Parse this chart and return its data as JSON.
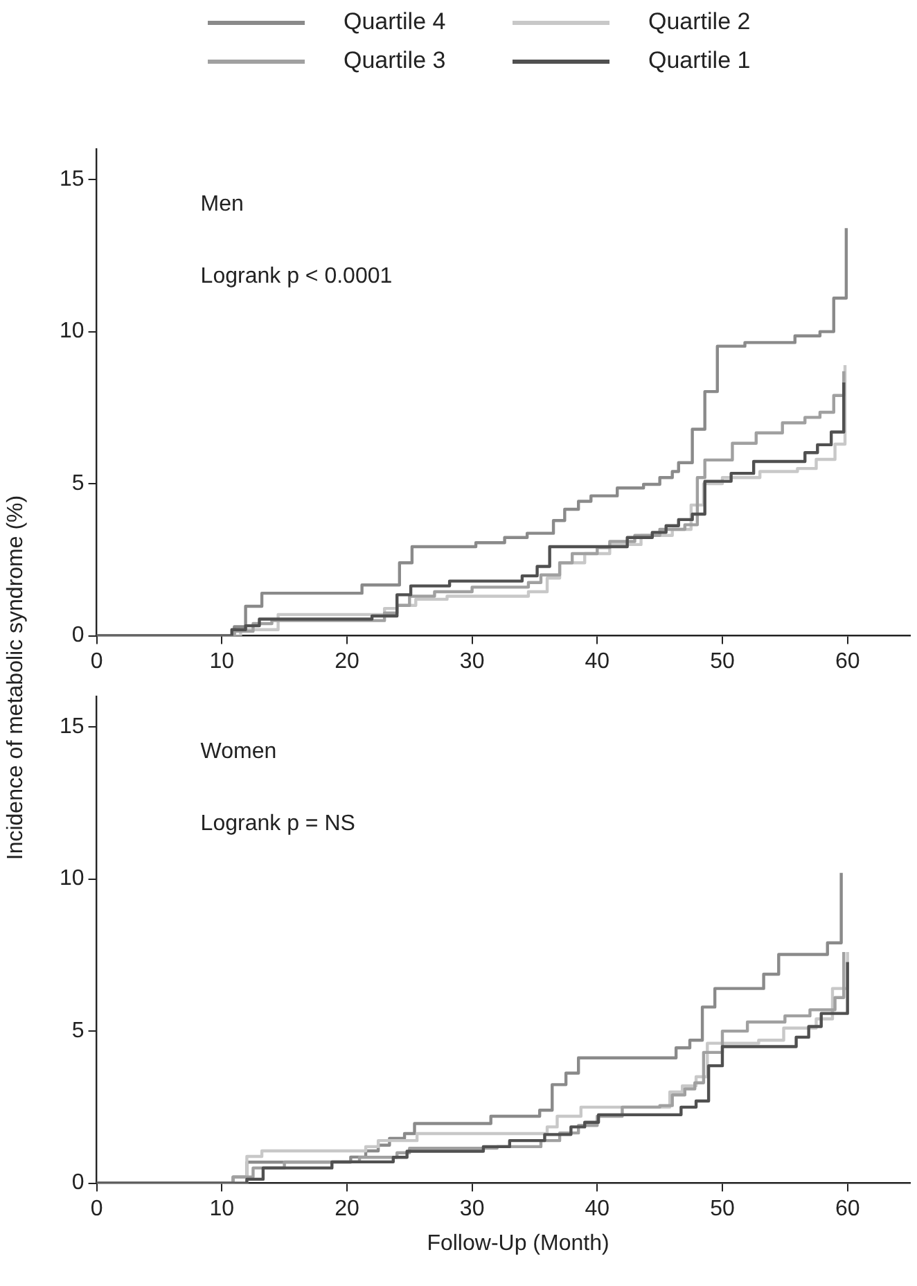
{
  "chart_data": [
    {
      "type": "step",
      "ylabel": "Incidence of metabolic syndrome (%)",
      "annotations": [
        "Men",
        "Logrank p < 0.0001"
      ],
      "legend": "top",
      "marker": "none",
      "grid": false,
      "xlim": [
        0,
        65
      ],
      "xticks": [
        0,
        10,
        20,
        30,
        40,
        50,
        60
      ],
      "ylim": [
        0,
        16
      ],
      "yticks": [
        0,
        5,
        10,
        15
      ],
      "series": [
        {
          "name": "Quartile 4",
          "color": "#8a8a8a",
          "x": [
            0,
            11,
            11.9,
            13.2,
            21.2,
            24.2,
            25.2,
            30.3,
            32.6,
            34.4,
            36.5,
            37.4,
            38.5,
            39.5,
            41.6,
            43.7,
            45,
            46,
            46.5,
            47.6,
            48.6,
            49.6,
            51.8,
            55.8,
            57.8,
            58.9,
            59.9
          ],
          "values": [
            0,
            0.3,
            0.97,
            1.4,
            1.67,
            2.4,
            2.93,
            3.06,
            3.23,
            3.37,
            3.79,
            4.16,
            4.42,
            4.6,
            4.86,
            4.98,
            5.2,
            5.4,
            5.69,
            6.79,
            8.03,
            9.52,
            9.64,
            9.86,
            10.0,
            11.1,
            13.4
          ]
        },
        {
          "name": "Quartile 2",
          "color": "#c8c8c8",
          "x": [
            0,
            11.5,
            14.5,
            23,
            24,
            25.5,
            28,
            34.5,
            36,
            37,
            39,
            41,
            43.5,
            46,
            47.5,
            48.5,
            50,
            53,
            56,
            57.5,
            59,
            59.8
          ],
          "values": [
            0,
            0.2,
            0.7,
            0.9,
            1.0,
            1.2,
            1.3,
            1.45,
            1.9,
            2.4,
            2.7,
            3.0,
            3.3,
            3.5,
            4.3,
            5.0,
            5.2,
            5.4,
            5.5,
            5.8,
            6.3,
            8.9
          ]
        },
        {
          "name": "Quartile 3",
          "color": "#a0a0a0",
          "x": [
            0,
            11,
            12.5,
            14,
            23,
            24,
            25,
            27,
            30,
            34.5,
            35.5,
            37,
            38,
            40,
            41,
            43,
            45,
            47,
            48,
            48.6,
            50.8,
            52.7,
            54.8,
            56.6,
            57.8,
            58.9,
            59.7
          ],
          "values": [
            0,
            0.15,
            0.4,
            0.5,
            0.75,
            1.0,
            1.3,
            1.45,
            1.6,
            1.75,
            2.0,
            2.4,
            2.7,
            2.9,
            3.1,
            3.3,
            3.5,
            3.65,
            5.2,
            5.78,
            6.33,
            6.67,
            7.0,
            7.18,
            7.35,
            7.9,
            8.7
          ]
        },
        {
          "name": "Quartile 1",
          "color": "#505050",
          "x": [
            0,
            10.8,
            11.9,
            13,
            22,
            24,
            25.1,
            28.2,
            34,
            35.2,
            36.2,
            42.4,
            44.4,
            45.5,
            46.5,
            47.6,
            48.6,
            50.7,
            52.5,
            56.6,
            57.6,
            58.7,
            59.7
          ],
          "values": [
            0,
            0.2,
            0.33,
            0.55,
            0.65,
            1.35,
            1.64,
            1.8,
            1.97,
            2.28,
            2.93,
            3.23,
            3.4,
            3.62,
            3.82,
            4.0,
            5.08,
            5.34,
            5.73,
            6.02,
            6.28,
            6.7,
            8.33
          ]
        }
      ]
    },
    {
      "type": "step",
      "xlabel": "Follow-Up (Month)",
      "annotations": [
        "Women",
        "Logrank p = NS"
      ],
      "marker": "none",
      "grid": false,
      "xlim": [
        0,
        65
      ],
      "xticks": [
        0,
        10,
        20,
        30,
        40,
        50,
        60
      ],
      "ylim": [
        0,
        16
      ],
      "yticks": [
        0,
        5,
        10,
        15
      ],
      "series": [
        {
          "color": "#8a8a8a",
          "x": [
            0,
            10.9,
            12,
            20.3,
            21.5,
            22.5,
            23.4,
            24.6,
            25.4,
            31.5,
            35.4,
            36.4,
            37.5,
            38.5,
            46.3,
            47.4,
            48.4,
            49.4,
            53.3,
            54.5,
            58.4,
            59.5
          ],
          "values": [
            0,
            0.2,
            0.69,
            0.86,
            1.06,
            1.25,
            1.47,
            1.63,
            1.96,
            2.2,
            2.4,
            3.24,
            3.62,
            4.12,
            4.45,
            4.7,
            5.79,
            6.4,
            6.87,
            7.52,
            7.9,
            10.2
          ]
        },
        {
          "color": "#c8c8c8",
          "x": [
            0,
            12,
            13.2,
            21.5,
            22.5,
            25.6,
            36,
            36.8,
            38.7,
            45.8,
            46.8,
            47.9,
            48.8,
            52.9,
            54.9,
            57.5,
            58.8,
            60
          ],
          "values": [
            0,
            0.88,
            1.06,
            1.2,
            1.4,
            1.63,
            1.85,
            2.2,
            2.5,
            3.0,
            3.2,
            3.5,
            4.6,
            4.7,
            5.1,
            5.4,
            6.4,
            7.6
          ]
        },
        {
          "color": "#a0a0a0",
          "x": [
            0,
            10.9,
            12.5,
            15,
            21,
            24,
            25,
            32,
            35.5,
            37,
            38.5,
            40,
            42,
            45,
            46,
            47,
            47.8,
            48.5,
            50,
            52,
            55,
            57,
            59,
            59.7
          ],
          "values": [
            0,
            0.2,
            0.5,
            0.7,
            0.85,
            1.0,
            1.15,
            1.2,
            1.4,
            1.65,
            1.9,
            2.2,
            2.5,
            2.55,
            2.9,
            3.1,
            3.3,
            4.3,
            5.0,
            5.3,
            5.5,
            5.7,
            6.1,
            7.6
          ]
        },
        {
          "color": "#505050",
          "x": [
            0,
            12,
            13.3,
            18.8,
            23.7,
            24.8,
            30.9,
            33,
            35.8,
            37.9,
            39,
            40.1,
            46.7,
            47.9,
            48.9,
            50,
            55.9,
            56.9,
            57.9,
            60
          ],
          "values": [
            0,
            0.13,
            0.5,
            0.7,
            0.85,
            1.05,
            1.2,
            1.4,
            1.6,
            1.85,
            2.0,
            2.25,
            2.5,
            2.7,
            3.86,
            4.49,
            4.8,
            5.15,
            5.58,
            7.27
          ]
        }
      ]
    }
  ]
}
